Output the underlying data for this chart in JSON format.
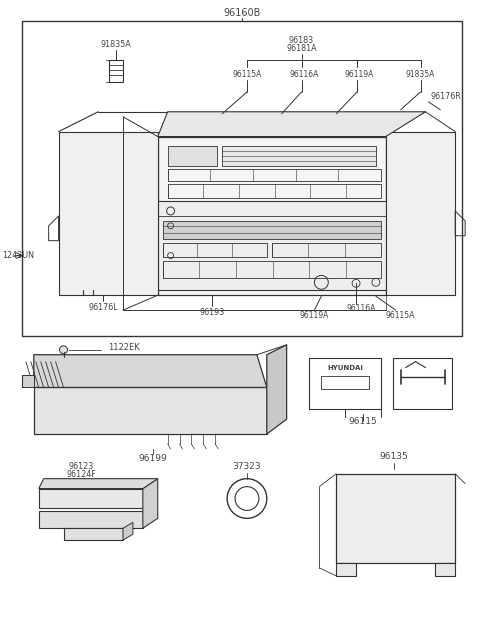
{
  "bg_color": "#ffffff",
  "line_color": "#333333",
  "text_color": "#444444",
  "gray_fill": "#c8c8c8",
  "parts": {
    "main_box_label": "96160B",
    "label_1243UN": "1243UN",
    "label_91835A_left": "91835A",
    "label_96183": "96183",
    "label_96181A": "96181A",
    "label_96115A_top": "96115A",
    "label_96116A_top": "96116A",
    "label_96119A_top": "96119A",
    "label_91835A_right": "91835A",
    "label_96176R": "96176R",
    "label_96176L": "96176L",
    "label_96193": "96193",
    "label_96119A_bot": "96119A",
    "label_96116A_bot": "96116A",
    "label_96115A_bot": "96115A",
    "label_1122EK": "1122EK",
    "label_96199": "96199",
    "label_96115": "96115",
    "label_96123": "96123",
    "label_96124F": "96124F",
    "label_37323": "37323",
    "label_96135": "96135"
  }
}
